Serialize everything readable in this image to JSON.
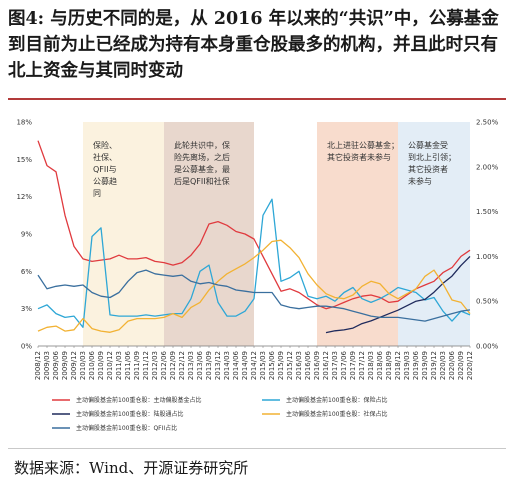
{
  "header": {
    "figure_label": "图4:",
    "title": "与历史不同的是，从 2016 年以来的“共识”中，公募基金到目前为止已经成为持有本身重仓股最多的机构，并且此时只有北上资金与其同时变动"
  },
  "footer": {
    "source": "数据来源：Wind、开源证券研究所"
  },
  "colors": {
    "public_fund": "#e03a3e",
    "insurance": "#2ea7d6",
    "sgt": "#1f2a5c",
    "social_security": "#f2b233",
    "qfii": "#3a6f9e"
  },
  "chart_data": {
    "type": "line",
    "title": "",
    "xlabel": "",
    "ylabel_left": "",
    "ylabel_right": "",
    "x": [
      "2008/12",
      "2009/03",
      "2009/06",
      "2009/09",
      "2009/12",
      "2010/03",
      "2010/06",
      "2010/09",
      "2010/12",
      "2011/03",
      "2011/06",
      "2011/09",
      "2011/12",
      "2012/03",
      "2012/06",
      "2012/09",
      "2012/12",
      "2013/03",
      "2013/06",
      "2013/09",
      "2013/12",
      "2014/03",
      "2014/06",
      "2014/09",
      "2014/12",
      "2015/03",
      "2015/06",
      "2015/09",
      "2015/12",
      "2016/03",
      "2016/06",
      "2016/09",
      "2016/12",
      "2017/03",
      "2017/06",
      "2017/09",
      "2017/12",
      "2018/03",
      "2018/06",
      "2018/09",
      "2018/12",
      "2019/03",
      "2019/06",
      "2019/09",
      "2019/12",
      "2020/03",
      "2020/06",
      "2020/09",
      "2020/12"
    ],
    "y_left": {
      "ticks": [
        "0%",
        "3%",
        "6%",
        "9%",
        "12%",
        "15%",
        "18%"
      ],
      "min": 0,
      "max": 18
    },
    "y_right": {
      "ticks": [
        "0.00%",
        "0.50%",
        "1.00%",
        "1.50%",
        "2.00%",
        "2.50%"
      ],
      "min": 0,
      "max": 2.5
    },
    "grid": false,
    "legend_position": "bottom",
    "series": [
      {
        "name": "主动偏股基金前100重仓股：主动偏股基金占比",
        "axis": "left",
        "color": "#e03a3e",
        "values": [
          16.5,
          14.5,
          14.0,
          10.5,
          8.0,
          7.0,
          6.8,
          6.9,
          7.0,
          7.3,
          7.0,
          7.0,
          7.1,
          6.8,
          6.7,
          6.5,
          6.7,
          7.3,
          8.2,
          9.8,
          10.0,
          9.7,
          9.2,
          9.0,
          8.6,
          7.2,
          5.8,
          4.4,
          4.6,
          4.3,
          3.8,
          3.3,
          3.0,
          3.2,
          3.5,
          3.8,
          4.0,
          4.1,
          3.9,
          3.5,
          3.6,
          4.1,
          4.6,
          4.9,
          5.2,
          5.9,
          6.3,
          7.2,
          7.7
        ]
      },
      {
        "name": "主动偏股基金前100重仓股：保险占比",
        "axis": "left",
        "color": "#2ea7d6",
        "values": [
          3.0,
          3.3,
          2.6,
          2.3,
          2.4,
          1.5,
          8.8,
          9.5,
          2.5,
          2.4,
          2.4,
          2.4,
          2.5,
          2.4,
          2.5,
          2.6,
          2.6,
          3.8,
          6.0,
          6.5,
          3.5,
          2.4,
          2.4,
          2.8,
          3.8,
          10.5,
          11.8,
          5.2,
          5.5,
          6.0,
          4.0,
          3.8,
          4.0,
          3.6,
          4.3,
          4.7,
          3.8,
          3.5,
          3.8,
          4.2,
          4.7,
          4.5,
          4.3,
          3.7,
          3.9,
          2.8,
          2.0,
          2.8,
          2.5
        ]
      },
      {
        "name": "主动偏股基金前100重仓股：陆股通占比",
        "axis": "right",
        "color": "#1f2a5c",
        "values": [
          null,
          null,
          null,
          null,
          null,
          null,
          null,
          null,
          null,
          null,
          null,
          null,
          null,
          null,
          null,
          null,
          null,
          null,
          null,
          null,
          null,
          null,
          null,
          null,
          null,
          null,
          null,
          null,
          null,
          null,
          null,
          null,
          0.15,
          0.17,
          0.18,
          0.2,
          0.25,
          0.28,
          0.32,
          0.36,
          0.4,
          0.45,
          0.5,
          0.52,
          0.6,
          0.7,
          0.78,
          0.9,
          1.0
        ]
      },
      {
        "name": "主动偏股基金前100重仓股：社保占比",
        "axis": "left",
        "color": "#f2b233",
        "values": [
          1.2,
          1.5,
          1.6,
          1.2,
          1.3,
          2.2,
          1.4,
          1.2,
          1.1,
          1.3,
          2.0,
          2.2,
          2.2,
          2.2,
          2.3,
          2.6,
          2.3,
          3.1,
          3.5,
          4.5,
          5.2,
          5.8,
          6.2,
          6.6,
          7.1,
          7.7,
          8.4,
          8.5,
          7.9,
          7.1,
          5.8,
          4.9,
          4.2,
          3.9,
          3.8,
          4.1,
          4.8,
          5.2,
          5.0,
          4.2,
          3.8,
          4.2,
          4.6,
          5.6,
          6.1,
          5.0,
          3.7,
          3.5,
          2.6
        ]
      },
      {
        "name": "主动偏股基金前100重仓股：QFII占比",
        "axis": "left",
        "color": "#3a6f9e",
        "values": [
          5.7,
          4.6,
          4.8,
          4.9,
          4.8,
          4.9,
          4.3,
          4.0,
          3.9,
          4.3,
          5.2,
          5.9,
          6.1,
          5.8,
          5.7,
          5.6,
          5.7,
          5.2,
          5.0,
          5.1,
          4.9,
          4.8,
          4.5,
          4.4,
          4.3,
          4.3,
          4.3,
          3.3,
          3.1,
          3.0,
          3.1,
          3.2,
          3.2,
          3.1,
          3.0,
          2.8,
          2.6,
          2.4,
          2.3,
          2.3,
          2.3,
          2.2,
          2.1,
          2.0,
          2.2,
          2.4,
          2.6,
          2.8,
          2.9
        ]
      }
    ],
    "shaded_periods": [
      {
        "start_index": 5,
        "end_index": 14,
        "color": "#fbf2df",
        "lines": [
          "保险、",
          "社保、",
          "QFII与",
          "公募趋",
          "同"
        ]
      },
      {
        "start_index": 14,
        "end_index": 24,
        "color": "#e8d7cd",
        "lines": [
          "此轮共识中，保",
          "险先离场，之后",
          "是公募基金，最",
          "后是QFII和社保"
        ]
      },
      {
        "start_index": 31,
        "end_index": 40,
        "color": "#f8dccd",
        "lines": [
          "北上进驻公募基金；",
          "其它投资者未参与"
        ]
      },
      {
        "start_index": 40,
        "end_index": 48,
        "color": "#e3edf6",
        "lines": [
          "公募基金受",
          "到北上引领；",
          "其它投资者",
          "未参与"
        ]
      }
    ]
  }
}
